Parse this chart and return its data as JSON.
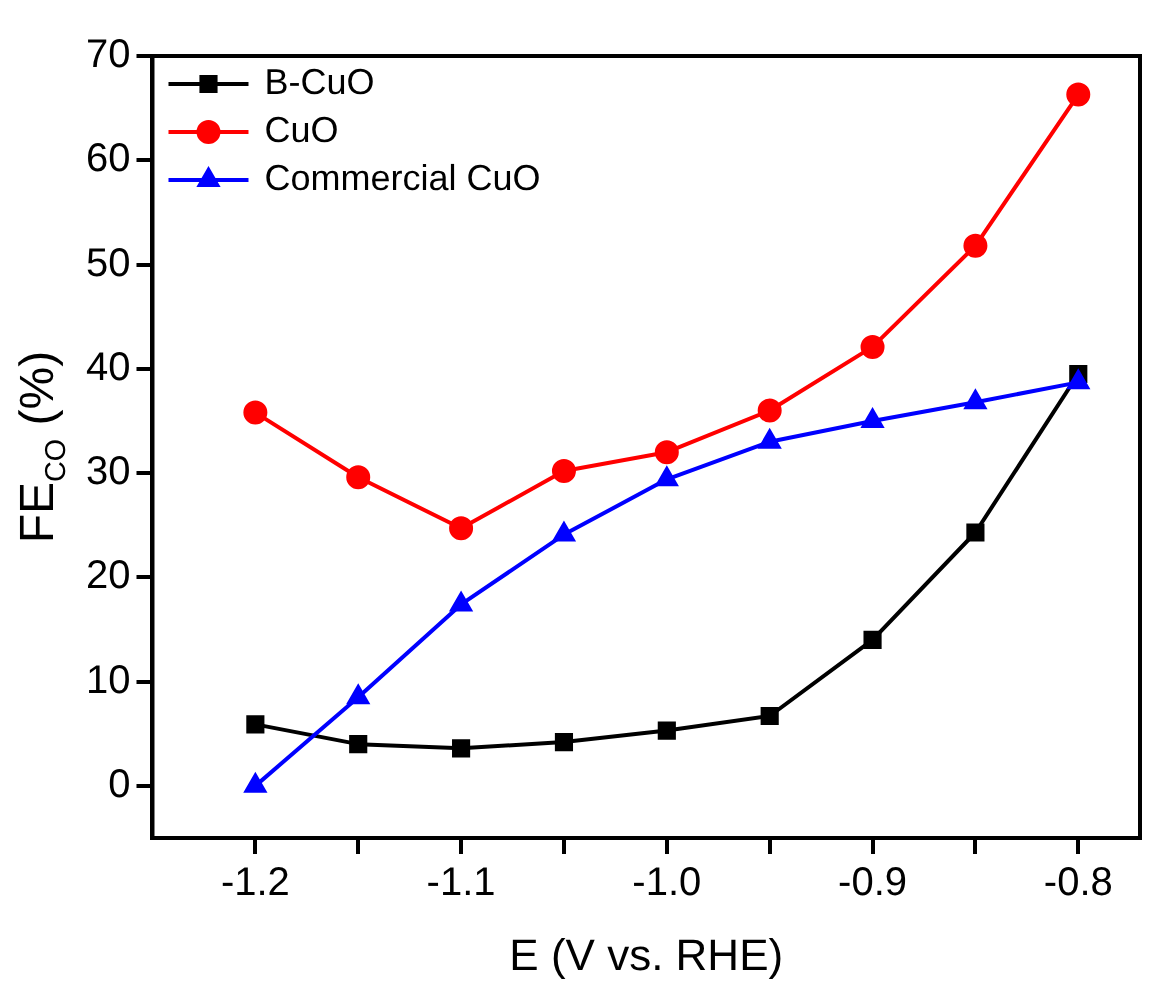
{
  "chart_data": {
    "type": "line",
    "xlabel": "E (V vs. RHE)",
    "ylabel": "FE$_{CO}$ (%)",
    "x": [
      -1.2,
      -1.15,
      -1.1,
      -1.05,
      -1.0,
      -0.95,
      -0.9,
      -0.85,
      -0.8
    ],
    "series": [
      {
        "name": "B-CuO",
        "color": "#000000",
        "marker": "square",
        "values": [
          5.9,
          4.0,
          3.6,
          4.2,
          5.3,
          6.7,
          14.0,
          24.3,
          39.5
        ]
      },
      {
        "name": "CuO",
        "color": "#ff0000",
        "marker": "circle",
        "values": [
          35.8,
          29.6,
          24.7,
          30.2,
          32.0,
          36.0,
          42.1,
          51.8,
          66.3
        ]
      },
      {
        "name": "Commercial CuO",
        "color": "#0000ff",
        "marker": "triangle",
        "values": [
          0,
          8.5,
          17.4,
          24.1,
          29.4,
          33.0,
          35.0,
          36.8,
          38.7
        ]
      }
    ],
    "xlim": [
      -1.25,
      -0.77
    ],
    "ylim": [
      -5,
      70
    ],
    "xticks": [
      {
        "value": -1.2,
        "label": "-1.2"
      },
      {
        "value": -1.15,
        "label": null
      },
      {
        "value": -1.1,
        "label": "-1.1"
      },
      {
        "value": -1.05,
        "label": null
      },
      {
        "value": -1.0,
        "label": "-1.0"
      },
      {
        "value": -0.95,
        "label": null
      },
      {
        "value": -0.9,
        "label": "-0.9"
      },
      {
        "value": -0.85,
        "label": null
      },
      {
        "value": -0.8,
        "label": "-0.8"
      }
    ],
    "yticks": [
      0,
      10,
      20,
      30,
      40,
      50,
      60,
      70
    ],
    "legend": "top left",
    "grid": false,
    "line_style": "solid"
  }
}
